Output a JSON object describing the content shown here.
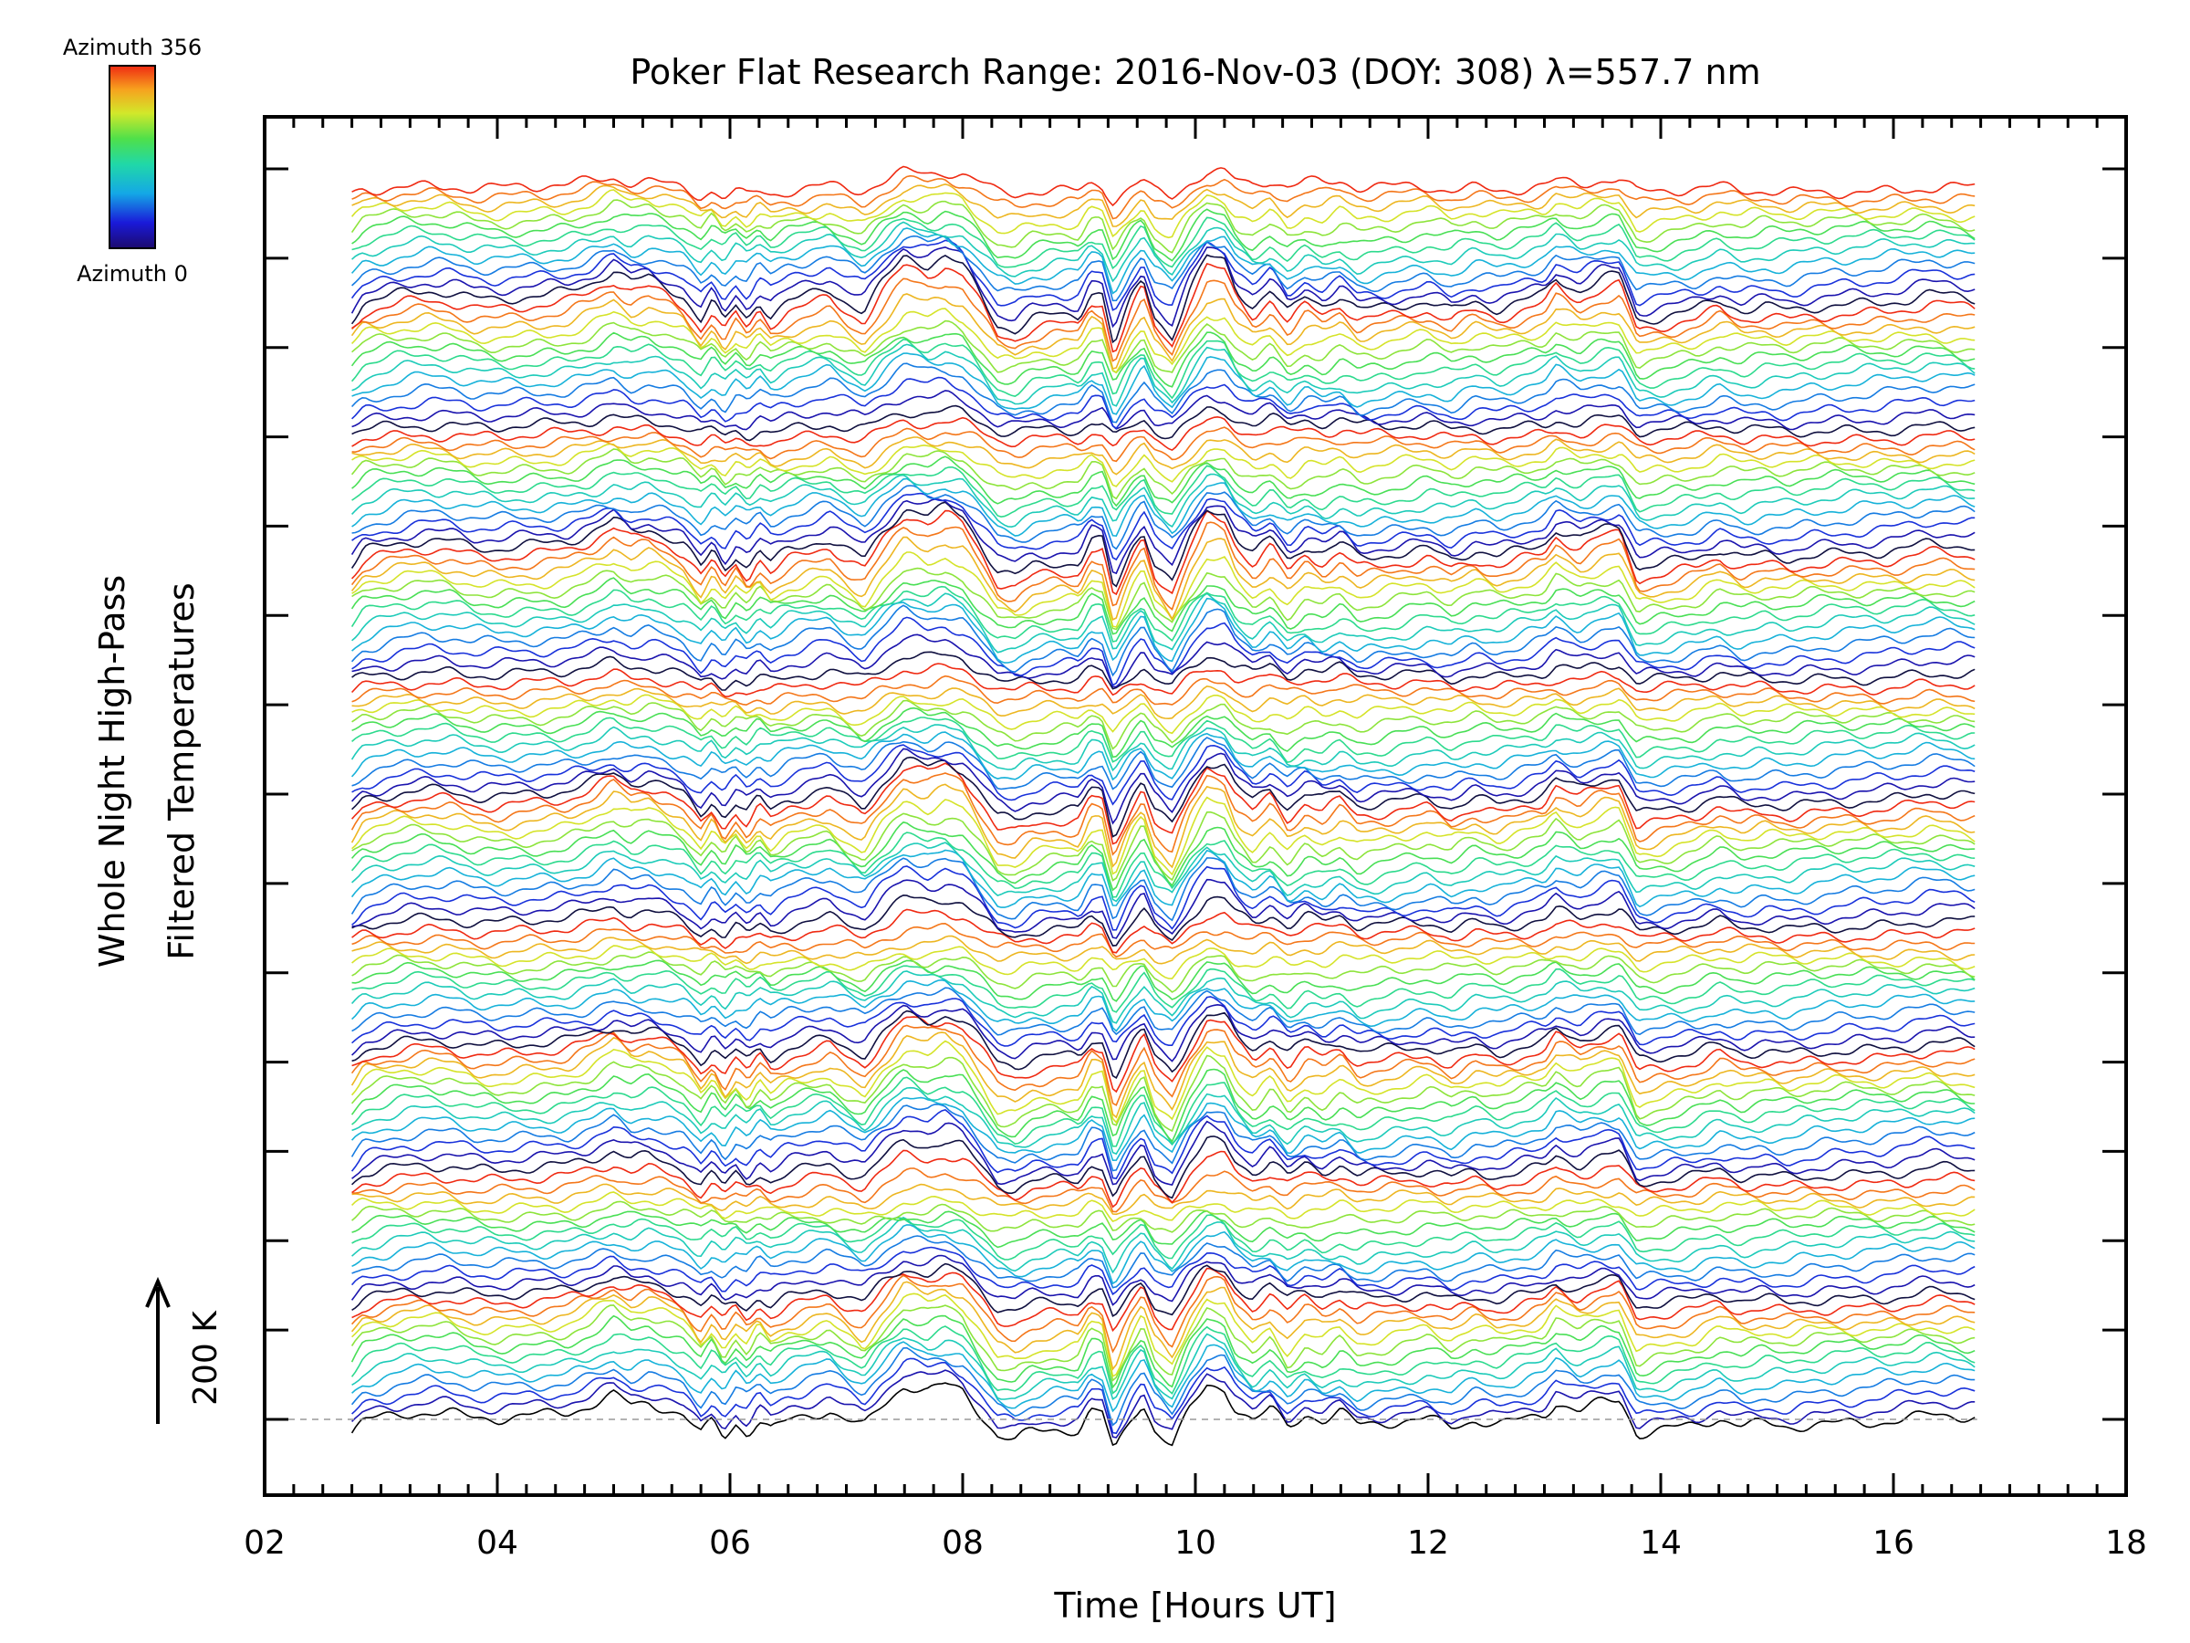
{
  "chart_data": {
    "type": "line",
    "title": "Poker Flat Research Range: 2016-Nov-03 (DOY: 308) λ=557.7 nm",
    "xlabel": "Time [Hours UT]",
    "ylabel_line1": "Whole Night High-Pass",
    "ylabel_line2": "Filtered Temperatures",
    "xlim": [
      2,
      18
    ],
    "x_tick_labels": [
      "02",
      "04",
      "06",
      "08",
      "10",
      "12",
      "14",
      "16",
      "18"
    ],
    "x_tick_values": [
      2,
      4,
      6,
      8,
      10,
      12,
      14,
      16,
      18
    ],
    "y_major_ticks": 15,
    "scale_bar_label": "200 K",
    "scale_bar_kelvin": 200,
    "colorbar": {
      "top_label": "Azimuth 356",
      "bottom_label": "Azimuth 0",
      "min": 0,
      "max": 356,
      "colormap": "rainbow"
    },
    "data_range": {
      "start_hour": 2.75,
      "end_hour": 16.72
    },
    "n_traces": 130,
    "baseline_dashed": true,
    "feature_hours": [
      2.9,
      3.4,
      4.1,
      5.0,
      5.4,
      5.75,
      6.0,
      6.25,
      6.5,
      7.0,
      7.2,
      7.5,
      7.9,
      8.3,
      8.6,
      9.1,
      9.3,
      9.55,
      9.8,
      10.1,
      10.5,
      10.8,
      11.0,
      11.3,
      12.2,
      12.6,
      13.1,
      13.6,
      13.85,
      14.5,
      15.3,
      16.4
    ],
    "reference_profile": [
      [
        2.75,
        -0.3
      ],
      [
        2.85,
        0.05
      ],
      [
        3.0,
        0.15
      ],
      [
        3.2,
        0.28
      ],
      [
        3.4,
        0.33
      ],
      [
        3.6,
        0.28
      ],
      [
        3.8,
        0.12
      ],
      [
        4.0,
        0.08
      ],
      [
        4.2,
        0.12
      ],
      [
        4.4,
        0.15
      ],
      [
        4.6,
        0.2
      ],
      [
        4.8,
        0.4
      ],
      [
        5.0,
        0.7
      ],
      [
        5.15,
        0.45
      ],
      [
        5.3,
        0.55
      ],
      [
        5.45,
        0.4
      ],
      [
        5.6,
        0.2
      ],
      [
        5.75,
        -0.3
      ],
      [
        5.85,
        0.1
      ],
      [
        5.95,
        -0.35
      ],
      [
        6.05,
        0.05
      ],
      [
        6.15,
        -0.25
      ],
      [
        6.25,
        0.15
      ],
      [
        6.35,
        -0.15
      ],
      [
        6.5,
        0.1
      ],
      [
        6.7,
        0.25
      ],
      [
        6.85,
        0.35
      ],
      [
        7.0,
        0.05
      ],
      [
        7.15,
        -0.2
      ],
      [
        7.3,
        0.35
      ],
      [
        7.5,
        0.95
      ],
      [
        7.7,
        0.75
      ],
      [
        7.85,
        0.9
      ],
      [
        8.0,
        0.7
      ],
      [
        8.15,
        0.1
      ],
      [
        8.3,
        -0.55
      ],
      [
        8.45,
        -0.65
      ],
      [
        8.6,
        -0.4
      ],
      [
        8.8,
        -0.3
      ],
      [
        9.0,
        -0.3
      ],
      [
        9.1,
        0.25
      ],
      [
        9.2,
        0.2
      ],
      [
        9.3,
        -0.95
      ],
      [
        9.45,
        0.05
      ],
      [
        9.55,
        0.5
      ],
      [
        9.65,
        -0.3
      ],
      [
        9.8,
        -0.75
      ],
      [
        9.95,
        0.2
      ],
      [
        10.1,
        0.9
      ],
      [
        10.25,
        0.8
      ],
      [
        10.35,
        0.2
      ],
      [
        10.5,
        -0.2
      ],
      [
        10.65,
        0.15
      ],
      [
        10.8,
        -0.4
      ],
      [
        10.95,
        0.0
      ],
      [
        11.1,
        -0.2
      ],
      [
        11.25,
        0.05
      ],
      [
        11.4,
        -0.3
      ],
      [
        11.6,
        -0.2
      ],
      [
        11.8,
        -0.1
      ],
      [
        12.0,
        0.0
      ],
      [
        12.2,
        -0.2
      ],
      [
        12.4,
        0.05
      ],
      [
        12.6,
        -0.1
      ],
      [
        12.8,
        0.05
      ],
      [
        13.0,
        0.2
      ],
      [
        13.1,
        0.55
      ],
      [
        13.3,
        0.25
      ],
      [
        13.5,
        0.5
      ],
      [
        13.65,
        0.55
      ],
      [
        13.8,
        -0.45
      ],
      [
        14.0,
        -0.35
      ],
      [
        14.3,
        -0.2
      ],
      [
        14.5,
        0.05
      ],
      [
        14.7,
        -0.15
      ],
      [
        14.9,
        -0.05
      ],
      [
        15.1,
        -0.1
      ],
      [
        15.3,
        0.0
      ],
      [
        15.5,
        0.05
      ],
      [
        15.7,
        0.08
      ],
      [
        15.9,
        0.1
      ],
      [
        16.1,
        0.15
      ],
      [
        16.3,
        0.25
      ],
      [
        16.5,
        0.2
      ],
      [
        16.72,
        0.1
      ]
    ]
  }
}
